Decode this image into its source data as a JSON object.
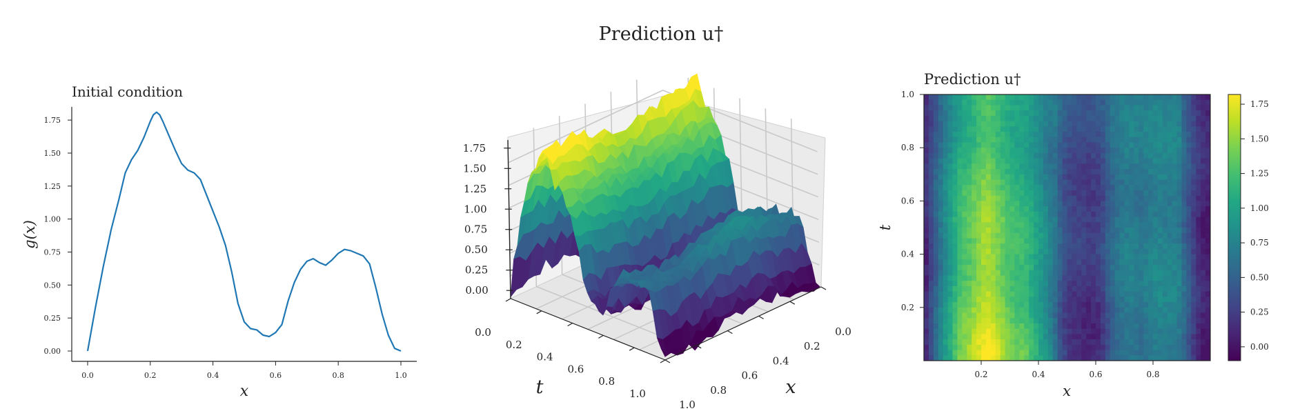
{
  "figure": {
    "suptitle": "Prediction u†"
  },
  "chart_data": [
    {
      "type": "line",
      "title": "Initial condition",
      "xlabel": "x",
      "ylabel": "g(x)",
      "xlim": [
        0.0,
        1.0
      ],
      "ylim": [
        0.0,
        1.85
      ],
      "xticks": [
        "0.0",
        "0.2",
        "0.4",
        "0.6",
        "0.8",
        "1.0"
      ],
      "yticks": [
        "0.00",
        "0.25",
        "0.50",
        "0.75",
        "1.00",
        "1.25",
        "1.50",
        "1.75"
      ],
      "color": "#1f77b4",
      "series": [
        {
          "x": [
            0.0,
            0.025,
            0.05,
            0.075,
            0.1,
            0.12,
            0.14,
            0.16,
            0.18,
            0.2,
            0.21,
            0.22,
            0.23,
            0.24,
            0.26,
            0.28,
            0.3,
            0.32,
            0.34,
            0.36,
            0.38,
            0.4,
            0.42,
            0.44,
            0.46,
            0.48,
            0.5,
            0.52,
            0.54,
            0.56,
            0.58,
            0.6,
            0.62,
            0.64,
            0.66,
            0.68,
            0.7,
            0.72,
            0.74,
            0.76,
            0.78,
            0.8,
            0.82,
            0.84,
            0.86,
            0.88,
            0.9,
            0.92,
            0.94,
            0.96,
            0.98,
            1.0
          ],
          "y": [
            0.0,
            0.33,
            0.64,
            0.92,
            1.15,
            1.35,
            1.45,
            1.52,
            1.62,
            1.74,
            1.79,
            1.81,
            1.79,
            1.74,
            1.63,
            1.52,
            1.42,
            1.37,
            1.35,
            1.3,
            1.18,
            1.06,
            0.94,
            0.8,
            0.6,
            0.36,
            0.22,
            0.17,
            0.16,
            0.12,
            0.11,
            0.14,
            0.2,
            0.38,
            0.52,
            0.62,
            0.68,
            0.7,
            0.67,
            0.65,
            0.69,
            0.74,
            0.77,
            0.76,
            0.74,
            0.72,
            0.66,
            0.48,
            0.28,
            0.12,
            0.02,
            0.0
          ]
        }
      ]
    },
    {
      "type": "surface3d",
      "xlabel": "x",
      "ylabel": "t",
      "xticks": [
        "0.0",
        "0.2",
        "0.4",
        "0.6",
        "0.8",
        "1.0"
      ],
      "yticks": [
        "0.0",
        "0.2",
        "0.4",
        "0.6",
        "0.8",
        "1.0"
      ],
      "zticks": [
        "0.00",
        "0.25",
        "0.50",
        "0.75",
        "1.00",
        "1.25",
        "1.50",
        "1.75"
      ],
      "zlim": [
        -0.1,
        1.85
      ],
      "colormap": "viridis"
    },
    {
      "type": "heatmap",
      "title": "Prediction u†",
      "xlabel": "x",
      "ylabel": "t",
      "xlim": [
        0.0,
        1.0
      ],
      "ylim": [
        0.0,
        1.0
      ],
      "xticks": [
        "0.2",
        "0.4",
        "0.6",
        "0.8"
      ],
      "yticks": [
        "0.2",
        "0.4",
        "0.6",
        "0.8",
        "1.0"
      ],
      "colorbar_ticks": [
        "0.00",
        "0.25",
        "0.50",
        "0.75",
        "1.00",
        "1.25",
        "1.50",
        "1.75"
      ],
      "colorbar_range": [
        -0.1,
        1.82
      ],
      "colormap": "viridis"
    }
  ]
}
